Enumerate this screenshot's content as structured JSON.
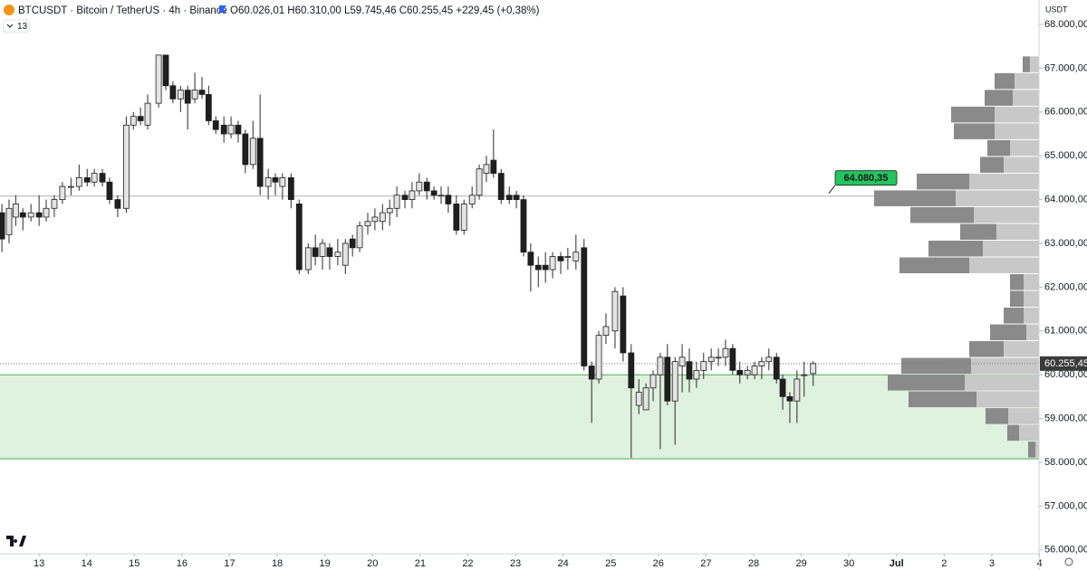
{
  "chart_data": {
    "type": "candlestick",
    "title": "BTCUSDT · Bitcoin / TetherUS · 4h · Binance",
    "ohlc_text": "O60.026,01 H60.310,00 L59.745,46 C60.255,45 +229,45 (+0,38%)",
    "indicator_count": "13",
    "y_axis_label": "USDT",
    "x": [
      12.22,
      12.37,
      12.51,
      12.66,
      12.83,
      13.0,
      13.15,
      13.32,
      13.49,
      13.67,
      13.84,
      14.01,
      14.16,
      14.33,
      14.48,
      14.65,
      14.83,
      14.98,
      15.13,
      15.28,
      15.51,
      15.66,
      15.81,
      15.97,
      16.12,
      16.27,
      16.42,
      16.56,
      16.71,
      16.88,
      17.03,
      17.18,
      17.33,
      17.49,
      17.64,
      17.81,
      17.96,
      18.11,
      18.29,
      18.46,
      18.65,
      18.8,
      18.95,
      19.1,
      19.27,
      19.43,
      19.58,
      19.73,
      19.9,
      20.05,
      20.21,
      20.36,
      20.51,
      20.68,
      20.83,
      20.98,
      21.14,
      21.29,
      21.44,
      21.59,
      21.76,
      21.92,
      22.09,
      22.24,
      22.39,
      22.54,
      22.7,
      22.87,
      23.02,
      23.17,
      23.32,
      23.48,
      23.63,
      23.78,
      23.95,
      24.1,
      24.27,
      24.44,
      24.6,
      24.75,
      24.9,
      25.09,
      25.26,
      25.43,
      25.59,
      25.74,
      25.89,
      26.04,
      26.19,
      26.35,
      26.5,
      26.65,
      26.8,
      26.95,
      27.11,
      27.26,
      27.41,
      27.56,
      27.71,
      27.87,
      28.02,
      28.17,
      28.32,
      28.48,
      28.61,
      28.76,
      28.91,
      29.06,
      29.25
    ],
    "open": [
      63700,
      63200,
      63600,
      63700,
      63600,
      63700,
      63600,
      63800,
      64000,
      64300,
      64300,
      64500,
      64400,
      64600,
      64400,
      64000,
      63800,
      65700,
      65900,
      65700,
      66200,
      67300,
      66600,
      66300,
      66500,
      66300,
      66500,
      66400,
      65800,
      65700,
      65500,
      65700,
      65500,
      64800,
      65400,
      64300,
      64500,
      64300,
      64500,
      63900,
      62400,
      62900,
      62700,
      62900,
      62700,
      62500,
      63100,
      62900,
      63400,
      63500,
      63500,
      63700,
      63800,
      64100,
      64000,
      64200,
      64400,
      64200,
      64100,
      64100,
      63900,
      63300,
      63900,
      64100,
      64600,
      64900,
      64600,
      64100,
      64100,
      64000,
      62800,
      62500,
      62500,
      62400,
      62700,
      62700,
      62600,
      62900,
      60200,
      59900,
      60900,
      61000,
      61800,
      60500,
      59300,
      59200,
      59700,
      60000,
      60400,
      59400,
      60200,
      60300,
      59900,
      60100,
      60300,
      60400,
      60400,
      60600,
      60100,
      60000,
      60000,
      60200,
      60300,
      60400,
      59900,
      59500,
      59400,
      60000,
      60026.01
    ],
    "high": [
      63900,
      64000,
      64100,
      63800,
      63900,
      64100,
      64000,
      64100,
      64400,
      64500,
      64800,
      64700,
      64700,
      64700,
      64500,
      64100,
      65900,
      66000,
      66100,
      66400,
      67300,
      67300,
      66700,
      66600,
      66600,
      66900,
      66800,
      66600,
      65900,
      65900,
      65900,
      65800,
      65600,
      65800,
      66400,
      64700,
      64600,
      64600,
      64600,
      64000,
      63000,
      63200,
      63100,
      63000,
      63100,
      63100,
      63200,
      63500,
      63700,
      63800,
      63900,
      64000,
      64300,
      64200,
      64400,
      64600,
      64500,
      64300,
      64300,
      64300,
      64100,
      64000,
      64300,
      64800,
      65000,
      65600,
      64700,
      64300,
      64200,
      64100,
      63000,
      62700,
      62800,
      62800,
      62800,
      62900,
      63200,
      63100,
      60300,
      61000,
      61400,
      62000,
      62000,
      60700,
      59900,
      59800,
      60100,
      60500,
      60700,
      60400,
      60700,
      60600,
      60300,
      60500,
      60600,
      60600,
      60800,
      60700,
      60300,
      60200,
      60300,
      60400,
      60600,
      60500,
      60000,
      59600,
      60100,
      60300,
      60310
    ],
    "low": [
      62800,
      63000,
      63400,
      63300,
      63500,
      63400,
      63500,
      63600,
      63900,
      64100,
      64200,
      64300,
      64300,
      64300,
      63900,
      63600,
      63700,
      65600,
      65700,
      65600,
      66100,
      66500,
      66200,
      66000,
      65600,
      66200,
      66300,
      65700,
      65500,
      65300,
      65400,
      65300,
      64600,
      64700,
      64100,
      64000,
      64100,
      64000,
      63800,
      62300,
      62300,
      62500,
      62400,
      62400,
      62500,
      62300,
      62700,
      62800,
      63200,
      63300,
      63300,
      63400,
      63600,
      63800,
      63800,
      64100,
      64000,
      64000,
      63900,
      63700,
      63200,
      63200,
      63800,
      64000,
      64400,
      64500,
      63900,
      63900,
      63800,
      62700,
      61900,
      62000,
      62100,
      62200,
      62300,
      62400,
      62400,
      60100,
      58900,
      59800,
      60700,
      60600,
      60300,
      58100,
      59100,
      59200,
      59400,
      58300,
      59300,
      58400,
      59600,
      59600,
      59700,
      59900,
      60100,
      60200,
      60200,
      60000,
      59800,
      59900,
      59900,
      59900,
      60100,
      59800,
      59200,
      58900,
      58900,
      59500,
      59745.46
    ],
    "close": [
      63100,
      63800,
      63900,
      63600,
      63700,
      63600,
      63800,
      64000,
      64300,
      64300,
      64500,
      64400,
      64600,
      64400,
      64000,
      63800,
      65700,
      65900,
      65800,
      66200,
      67300,
      66600,
      66300,
      66500,
      66200,
      66500,
      66400,
      65800,
      65600,
      65500,
      65700,
      65500,
      64800,
      65400,
      64300,
      64500,
      64400,
      64500,
      64000,
      62400,
      62900,
      62700,
      63000,
      62700,
      62800,
      63000,
      62900,
      63400,
      63500,
      63600,
      63700,
      63800,
      64100,
      64000,
      64200,
      64400,
      64200,
      64100,
      64100,
      63900,
      63300,
      63900,
      64100,
      64700,
      64800,
      64600,
      64000,
      64000,
      64000,
      62800,
      62500,
      62400,
      62400,
      62700,
      62600,
      62700,
      62800,
      60200,
      59900,
      60900,
      61100,
      61900,
      60500,
      59700,
      59600,
      59700,
      60000,
      60400,
      59400,
      60300,
      60400,
      59900,
      60100,
      60300,
      60400,
      60400,
      60600,
      60100,
      60000,
      60100,
      60200,
      60300,
      60400,
      59900,
      59500,
      59400,
      59900,
      60000,
      60255.45
    ],
    "up_color": "#e4e4e4",
    "down_color": "#1f1f1f",
    "xlim": [
      12.18,
      33.99
    ],
    "ylim": [
      55913,
      68558
    ],
    "xticks": [
      13,
      14,
      15,
      16,
      17,
      18,
      19,
      20,
      21,
      22,
      23,
      24,
      25,
      26,
      27,
      28,
      29,
      30,
      {
        "value": 31,
        "label": "Jul"
      },
      {
        "value": 32,
        "label": "2"
      },
      {
        "value": 33,
        "label": "3"
      },
      {
        "value": 34,
        "label": "4"
      }
    ],
    "yticks": [
      {
        "value": 56000,
        "label": "56.000,00"
      },
      {
        "value": 57000,
        "label": "57.000,00"
      },
      {
        "value": 58000,
        "label": "58.000,00"
      },
      {
        "value": 59000,
        "label": "59.000,00"
      },
      {
        "value": 60000,
        "label": "60.000,00"
      },
      {
        "value": 61000,
        "label": "61.000,00"
      },
      {
        "value": 62000,
        "label": "62.000,00"
      },
      {
        "value": 63000,
        "label": "63.000,00"
      },
      {
        "value": 64000,
        "label": "64.000,00"
      },
      {
        "value": 65000,
        "label": "65.000,00"
      },
      {
        "value": 66000,
        "label": "66.000,00"
      },
      {
        "value": 67000,
        "label": "67.000,00"
      },
      {
        "value": 68000,
        "label": "68.000,00"
      }
    ],
    "level": {
      "value": 64080.35,
      "label": "64.080,35",
      "color": "#22c55e"
    },
    "last_price": {
      "value": 60255.45,
      "label": "60.255,45"
    },
    "zone": {
      "low": 58080,
      "high": 60000,
      "color": "#4caf50"
    },
    "volume_profile": {
      "bins": [
        58100,
        58483,
        58865,
        59248,
        59630,
        60013,
        60395,
        60778,
        61160,
        61543,
        61925,
        62308,
        62690,
        63073,
        63455,
        63838,
        64220,
        64603,
        64985,
        65368,
        65750,
        66133,
        66515,
        66898,
        67280
      ],
      "dark": [
        8,
        13,
        25,
        75,
        85,
        77,
        38,
        40,
        22,
        15,
        15,
        77,
        60,
        40,
        70,
        90,
        58,
        26,
        25,
        45,
        48,
        31,
        22,
        8
      ],
      "light": [
        4,
        22,
        34,
        69,
        82,
        75,
        39,
        14,
        17,
        17,
        17,
        77,
        62,
        47,
        72,
        92,
        77,
        39,
        32,
        49,
        49,
        29,
        27,
        10
      ],
      "dark_color": "#8a8a8a",
      "light_color": "#c8c8c8"
    }
  }
}
